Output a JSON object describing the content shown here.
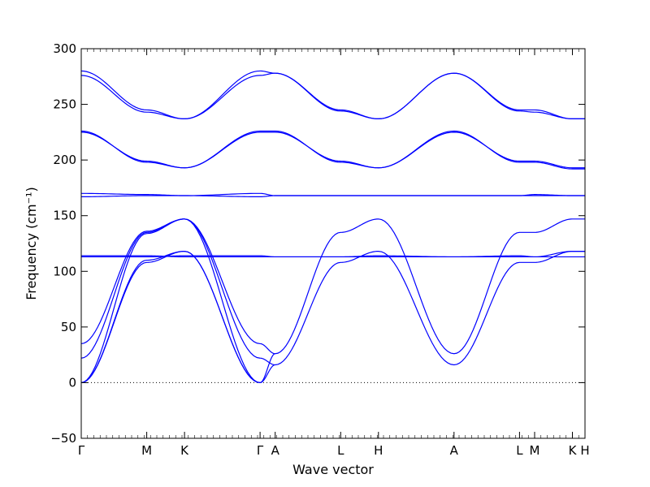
{
  "chart_data": {
    "type": "line",
    "title": "",
    "xlabel": "Wave vector",
    "ylabel": "Frequency (cm⁻¹)",
    "ylim": [
      -50,
      300
    ],
    "yticks": [
      -50,
      0,
      50,
      100,
      150,
      200,
      250,
      300
    ],
    "xticks": [
      {
        "label": "Γ",
        "x": 0
      },
      {
        "label": "M",
        "x": 0.13
      },
      {
        "label": "K",
        "x": 0.205
      },
      {
        "label": "Γ",
        "x": 0.355
      },
      {
        "label": "A",
        "x": 0.385
      },
      {
        "label": "L",
        "x": 0.515
      },
      {
        "label": "H",
        "x": 0.59
      },
      {
        "label": "A",
        "x": 0.74
      },
      {
        "label": "L",
        "x": 0.87
      },
      {
        "label": "M",
        "x": 0.9
      },
      {
        "label": "K",
        "x": 0.975
      },
      {
        "label": "H",
        "x": 1.0
      }
    ],
    "zero_line": true,
    "line_color": "#0000ff",
    "series": [
      {
        "x": [
          0,
          0.13,
          0.205,
          0.355
        ],
        "y": [
          0,
          108,
          118,
          0
        ]
      },
      {
        "x": [
          0,
          0.13,
          0.205,
          0.355
        ],
        "y": [
          0,
          110,
          118,
          0
        ]
      },
      {
        "x": [
          0,
          0.13,
          0.205,
          0.355
        ],
        "y": [
          0,
          134,
          147,
          0
        ]
      },
      {
        "x": [
          0,
          0.13,
          0.205,
          0.355
        ],
        "y": [
          22,
          135,
          147,
          22
        ]
      },
      {
        "x": [
          0,
          0.13,
          0.205,
          0.355
        ],
        "y": [
          35,
          136,
          147,
          35
        ]
      },
      {
        "x": [
          0.355,
          0.385
        ],
        "y": [
          22,
          16
        ]
      },
      {
        "x": [
          0.355,
          0.385
        ],
        "y": [
          35,
          26
        ]
      },
      {
        "x": [
          0.355,
          0.385
        ],
        "y": [
          0,
          26
        ]
      },
      {
        "x": [
          0.355,
          0.385
        ],
        "y": [
          0,
          16
        ]
      },
      {
        "x": [
          0.385,
          0.515,
          0.59,
          0.74,
          0.87,
          0.9,
          0.975,
          1.0
        ],
        "y": [
          16,
          108,
          118,
          16,
          108,
          108,
          118,
          118
        ]
      },
      {
        "x": [
          0.385,
          0.515,
          0.59,
          0.74,
          0.87,
          0.9,
          0.975,
          1.0
        ],
        "y": [
          26,
          135,
          147,
          26,
          135,
          135,
          147,
          147
        ]
      },
      {
        "x": [
          0,
          0.13,
          0.205,
          0.355,
          0.385,
          0.515,
          0.59,
          0.74,
          0.87,
          0.9,
          0.975,
          1.0
        ],
        "y": [
          113,
          113,
          114,
          114,
          113,
          113,
          113,
          113,
          113,
          113,
          113,
          113
        ]
      },
      {
        "x": [
          0,
          0.13,
          0.205,
          0.355,
          0.385,
          0.515,
          0.59,
          0.74,
          0.87,
          0.9,
          0.975,
          1.0
        ],
        "y": [
          114,
          114,
          113,
          113,
          113,
          113,
          114,
          113,
          114,
          113,
          118,
          118
        ]
      },
      {
        "x": [
          0,
          0.13,
          0.205,
          0.355,
          0.385,
          0.515,
          0.59,
          0.74,
          0.87,
          0.9,
          0.975,
          1.0
        ],
        "y": [
          170,
          169,
          168,
          170,
          168,
          168,
          168,
          168,
          168,
          169,
          168,
          168
        ]
      },
      {
        "x": [
          0,
          0.13,
          0.205,
          0.355,
          0.385,
          0.515,
          0.59,
          0.74,
          0.87,
          0.9,
          0.975,
          1.0
        ],
        "y": [
          167,
          168,
          168,
          167,
          168,
          168,
          168,
          168,
          168,
          168,
          168,
          168
        ]
      },
      {
        "x": [
          0,
          0.13,
          0.205,
          0.355,
          0.385,
          0.515,
          0.59,
          0.74,
          0.87,
          0.9,
          0.975,
          1.0
        ],
        "y": [
          226,
          198,
          193,
          226,
          226,
          198,
          193,
          226,
          198,
          198,
          192,
          192
        ]
      },
      {
        "x": [
          0,
          0.13,
          0.205,
          0.355,
          0.385,
          0.515,
          0.59,
          0.74,
          0.87,
          0.9,
          0.975,
          1.0
        ],
        "y": [
          225,
          199,
          193,
          225,
          225,
          199,
          193,
          225,
          199,
          199,
          193,
          193
        ]
      },
      {
        "x": [
          0,
          0.13,
          0.205,
          0.355,
          0.385,
          0.515,
          0.59,
          0.74,
          0.87,
          0.9,
          0.975,
          1.0
        ],
        "y": [
          280,
          245,
          237,
          280,
          278,
          245,
          237,
          278,
          245,
          245,
          237,
          237
        ]
      },
      {
        "x": [
          0,
          0.13,
          0.205,
          0.355,
          0.385,
          0.515,
          0.59,
          0.74,
          0.87,
          0.9,
          0.975,
          1.0
        ],
        "y": [
          276,
          243,
          237,
          276,
          278,
          244,
          237,
          278,
          244,
          243,
          237,
          237
        ]
      }
    ]
  }
}
